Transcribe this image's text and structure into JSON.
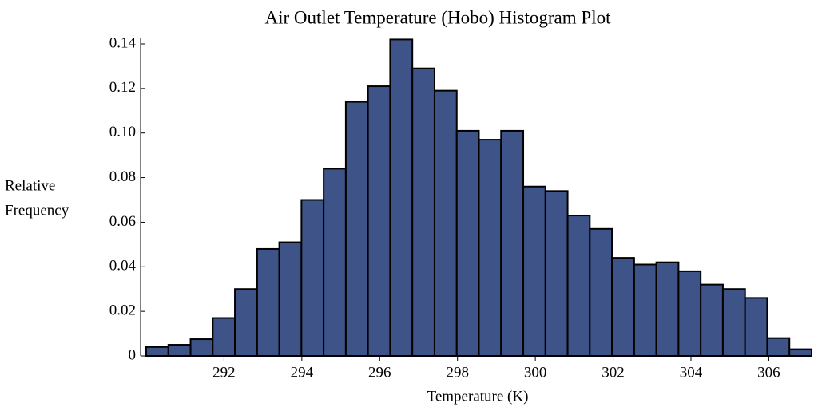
{
  "chart_data": {
    "type": "histogram",
    "title": "Air Outlet Temperature (Hobo) Histogram Plot",
    "x_label": "Temperature (K)",
    "y_label": [
      "Relative",
      "Frequency"
    ],
    "color": "#3e5488",
    "bins": [
      290.0,
      290.57,
      291.14,
      291.71,
      292.28,
      292.85,
      293.42,
      293.99,
      294.56,
      295.13,
      295.7,
      296.27,
      296.84,
      297.41,
      297.98,
      298.55,
      299.12,
      299.69,
      300.26,
      300.83,
      301.4,
      301.97,
      302.54,
      303.11,
      303.68,
      304.25,
      304.82,
      305.39,
      305.96,
      306.53,
      307.1
    ],
    "values": [
      0.004,
      0.005,
      0.0075,
      0.017,
      0.03,
      0.048,
      0.051,
      0.07,
      0.084,
      0.114,
      0.121,
      0.142,
      0.129,
      0.119,
      0.101,
      0.097,
      0.101,
      0.076,
      0.074,
      0.063,
      0.057,
      0.044,
      0.041,
      0.042,
      0.038,
      0.032,
      0.03,
      0.026,
      0.008,
      0.003
    ],
    "xlim": [
      290.0,
      307.1
    ],
    "ylim": [
      0,
      0.14
    ],
    "xticks": [
      292,
      294,
      296,
      298,
      300,
      302,
      304,
      306
    ],
    "yticks": [
      0,
      0.02,
      0.04,
      0.06,
      0.08,
      {
        "value": 0.1,
        "label": "0.10"
      },
      0.12,
      0.14
    ]
  }
}
